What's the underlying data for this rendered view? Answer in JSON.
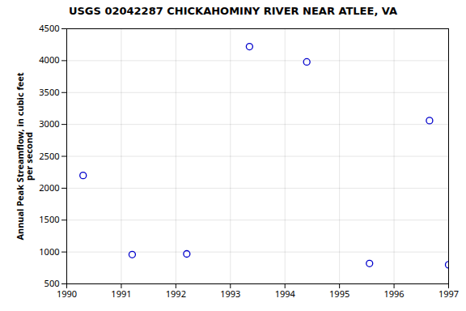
{
  "chart_data": {
    "type": "scatter",
    "title": "USGS 02042287 CHICKAHOMINY RIVER NEAR ATLEE, VA",
    "ylabel": "Annual Peak Streamflow, in cubic feet\nper second",
    "x": [
      1990.3,
      1991.2,
      1992.2,
      1993.35,
      1994.4,
      1995.55,
      1996.65,
      1997.0
    ],
    "values": [
      2200,
      960,
      970,
      4220,
      3980,
      820,
      3060,
      800
    ],
    "color": "#0000cc",
    "marker": "circle",
    "xlim": [
      1990,
      1997
    ],
    "ylim": [
      500,
      4500
    ],
    "xticks": [
      1990,
      1991,
      1992,
      1993,
      1994,
      1995,
      1996,
      1997
    ],
    "yticks": [
      500,
      1000,
      1500,
      2000,
      2500,
      3000,
      3500,
      4000,
      4500
    ],
    "grid": true
  }
}
